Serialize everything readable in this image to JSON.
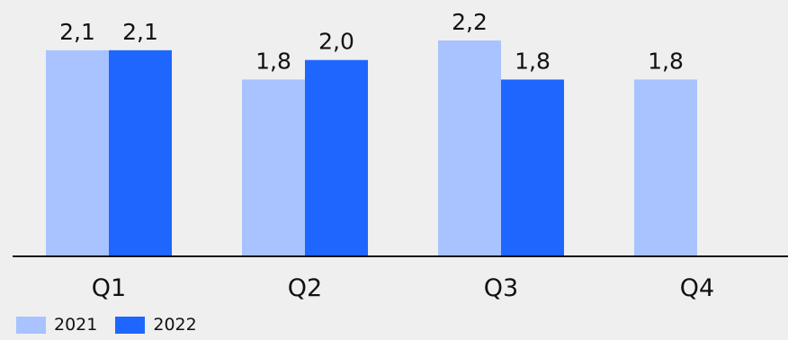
{
  "chart_data": {
    "type": "bar",
    "categories": [
      "Q1",
      "Q2",
      "Q3",
      "Q4"
    ],
    "series": [
      {
        "name": "2021",
        "color": "#a8c3ff",
        "values": [
          2.1,
          1.8,
          2.2,
          1.8
        ]
      },
      {
        "name": "2022",
        "color": "#1f66ff",
        "values": [
          2.1,
          2.0,
          1.8,
          null
        ]
      }
    ],
    "data_labels": [
      [
        "2,1",
        "1,8",
        "2,2",
        "1,8"
      ],
      [
        "2,1",
        "2,0",
        "1,8",
        ""
      ]
    ],
    "ylim": [
      0,
      2.2
    ],
    "grid": false,
    "legend_position": "bottom-left",
    "title": "",
    "xlabel": "",
    "ylabel": ""
  },
  "legend": [
    {
      "label": "2021",
      "color": "#a8c3ff"
    },
    {
      "label": "2022",
      "color": "#1f66ff"
    }
  ]
}
